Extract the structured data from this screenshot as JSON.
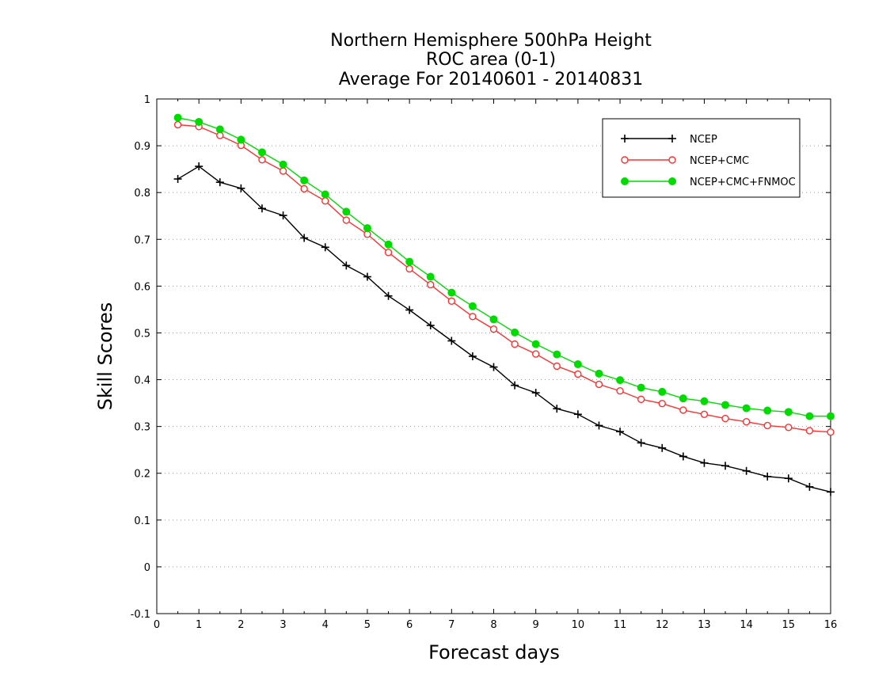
{
  "chart_data": {
    "type": "line",
    "title": [
      "Northern Hemisphere 500hPa Height",
      "ROC area (0-1)",
      "Average For 20140601 - 20140831"
    ],
    "xlabel": "Forecast days",
    "ylabel": "Skill Scores",
    "xlim": [
      0,
      16
    ],
    "ylim": [
      -0.1,
      1
    ],
    "xticks": [
      0,
      1,
      2,
      3,
      4,
      5,
      6,
      7,
      8,
      9,
      10,
      11,
      12,
      13,
      14,
      15,
      16
    ],
    "yticks": [
      -0.1,
      0,
      0.1,
      0.2,
      0.3,
      0.4,
      0.5,
      0.6,
      0.7,
      0.8,
      0.9,
      1
    ],
    "ytick_labels": [
      "-0.1",
      "0",
      "0.1",
      "0.2",
      "0.3",
      "0.4",
      "0.5",
      "0.6",
      "0.7",
      "0.8",
      "0.9",
      "1"
    ],
    "grid": "horizontal dotted",
    "legend_position": "top-right",
    "x": [
      0.5,
      1,
      1.5,
      2,
      2.5,
      3,
      3.5,
      4,
      4.5,
      5,
      5.5,
      6,
      6.5,
      7,
      7.5,
      8,
      8.5,
      9,
      9.5,
      10,
      10.5,
      11,
      11.5,
      12,
      12.5,
      13,
      13.5,
      14,
      14.5,
      15,
      15.5,
      16
    ],
    "series": [
      {
        "name": "NCEP",
        "color": "#000000",
        "marker": "plus",
        "values": [
          0.829,
          0.856,
          0.822,
          0.809,
          0.766,
          0.751,
          0.703,
          0.683,
          0.644,
          0.62,
          0.579,
          0.549,
          0.516,
          0.483,
          0.45,
          0.427,
          0.388,
          0.372,
          0.338,
          0.326,
          0.302,
          0.289,
          0.265,
          0.254,
          0.236,
          0.222,
          0.216,
          0.205,
          0.193,
          0.189,
          0.171,
          0.16
        ]
      },
      {
        "name": "NCEP+CMC",
        "color": "#ff3030",
        "marker": "open-circle",
        "values": [
          0.945,
          0.941,
          0.922,
          0.901,
          0.87,
          0.846,
          0.808,
          0.782,
          0.741,
          0.711,
          0.672,
          0.637,
          0.603,
          0.568,
          0.535,
          0.508,
          0.476,
          0.455,
          0.429,
          0.412,
          0.39,
          0.376,
          0.358,
          0.349,
          0.335,
          0.326,
          0.317,
          0.31,
          0.302,
          0.298,
          0.291,
          0.288
        ]
      },
      {
        "name": "NCEP+CMC+FNMOC",
        "color": "#00dc00",
        "marker": "filled-circle",
        "values": [
          0.96,
          0.951,
          0.935,
          0.913,
          0.886,
          0.86,
          0.826,
          0.796,
          0.759,
          0.724,
          0.689,
          0.652,
          0.62,
          0.586,
          0.557,
          0.529,
          0.501,
          0.476,
          0.454,
          0.433,
          0.413,
          0.399,
          0.383,
          0.374,
          0.36,
          0.354,
          0.346,
          0.339,
          0.334,
          0.331,
          0.322,
          0.322
        ]
      }
    ]
  }
}
